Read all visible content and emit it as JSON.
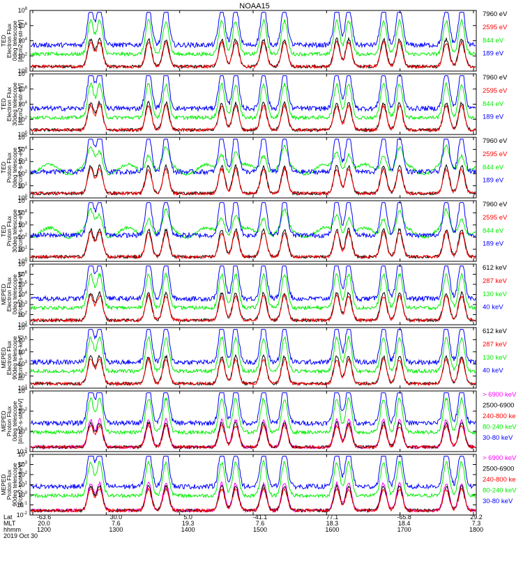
{
  "title": "NOAA15",
  "colors": {
    "black": "#000000",
    "red": "#ff0000",
    "green": "#00ee00",
    "blue": "#0000ff",
    "magenta": "#ff00ff"
  },
  "footer": {
    "row_labels": [
      "Lat",
      "MLT",
      "hhmm"
    ],
    "date": "2019 Oct 30",
    "columns": [
      {
        "lat": "-63.6",
        "mlt": "20.0",
        "hhmm": "1200"
      },
      {
        "lat": "30.0",
        "mlt": "7.6",
        "hhmm": "1300"
      },
      {
        "lat": "5.0",
        "mlt": "19.3",
        "hhmm": "1400"
      },
      {
        "lat": "-41.1",
        "mlt": "7.6",
        "hhmm": "1500"
      },
      {
        "lat": "77.1",
        "mlt": "18.3",
        "hhmm": "1600"
      },
      {
        "lat": "-65.8",
        "mlt": "18.4",
        "hhmm": "1700"
      },
      {
        "lat": "29.2",
        "mlt": "7.3",
        "hhmm": "1800"
      }
    ]
  },
  "chart_data": [
    {
      "type": "line",
      "ylabel": [
        "TED",
        "Electron Flux",
        "0deg telescope",
        "[#/cm2-s-str-eV]"
      ],
      "yticks": [
        "10^0",
        "10^2",
        "10^4",
        "10^6",
        "10^8"
      ],
      "series": [
        {
          "name": "7960 eV",
          "color": "#000000"
        },
        {
          "name": "2595 eV",
          "color": "#ff0000"
        },
        {
          "name": "844 eV",
          "color": "#00ee00"
        },
        {
          "name": "189 eV",
          "color": "#0000ff"
        }
      ]
    },
    {
      "type": "line",
      "ylabel": [
        "TED",
        "Electron Flux",
        "30deg telescope",
        "[#/cm2-s-str-eV]"
      ],
      "yticks": [
        "10^0",
        "10^2",
        "10^4",
        "10^6",
        "10^8"
      ],
      "series": [
        {
          "name": "7960 eV",
          "color": "#000000"
        },
        {
          "name": "2595 eV",
          "color": "#ff0000"
        },
        {
          "name": "844 eV",
          "color": "#00ee00"
        },
        {
          "name": "189 eV",
          "color": "#0000ff"
        }
      ]
    },
    {
      "type": "line",
      "ylabel": [
        "TED",
        "Proton Flux",
        "0deg telescope",
        "[#/cm2-s-str-eV]"
      ],
      "yticks": [
        "10^0",
        "10^1",
        "10^2",
        "10^3",
        "10^4",
        "10^5"
      ],
      "series": [
        {
          "name": "7960 eV",
          "color": "#000000"
        },
        {
          "name": "2595 eV",
          "color": "#ff0000"
        },
        {
          "name": "844 eV",
          "color": "#00ee00"
        },
        {
          "name": "189 eV",
          "color": "#0000ff"
        }
      ]
    },
    {
      "type": "line",
      "ylabel": [
        "TED",
        "Proton Flux",
        "30deg telescope",
        "[#/cm2-s-str-eV]"
      ],
      "yticks": [
        "10^0",
        "10^1",
        "10^2",
        "10^3",
        "10^4",
        "10^5"
      ],
      "series": [
        {
          "name": "7960 eV",
          "color": "#000000"
        },
        {
          "name": "2595 eV",
          "color": "#ff0000"
        },
        {
          "name": "844 eV",
          "color": "#00ee00"
        },
        {
          "name": "189 eV",
          "color": "#0000ff"
        }
      ]
    },
    {
      "type": "line",
      "ylabel": [
        "MEPED",
        "Electron Flux",
        "0deg telescope",
        "[#/cm2-s-str-keV]"
      ],
      "yticks": [
        "10^1",
        "10^2",
        "10^3",
        "10^4",
        "10^5",
        "10^6",
        "10^7"
      ],
      "series": [
        {
          "name": "612 keV",
          "color": "#000000"
        },
        {
          "name": "287 keV",
          "color": "#ff0000"
        },
        {
          "name": "130 keV",
          "color": "#00ee00"
        },
        {
          "name": "40 keV",
          "color": "#0000ff"
        }
      ]
    },
    {
      "type": "line",
      "ylabel": [
        "MEPED",
        "Electron Flux",
        "90deg telescope",
        "[#/cm2-s-str-keV]"
      ],
      "yticks": [
        "10^1",
        "10^2",
        "10^3",
        "10^4",
        "10^5",
        "10^6"
      ],
      "series": [
        {
          "name": "612 keV",
          "color": "#000000"
        },
        {
          "name": "287 keV",
          "color": "#ff0000"
        },
        {
          "name": "130 keV",
          "color": "#00ee00"
        },
        {
          "name": "40 keV",
          "color": "#0000ff"
        }
      ]
    },
    {
      "type": "line",
      "ylabel": [
        "MEPED",
        "Proton Flux",
        "0deg telescope",
        "[#/cm2-s-str-keV]"
      ],
      "yticks": [
        "10^-2",
        "10^0",
        "10^2",
        "10^4"
      ],
      "series": [
        {
          "name": "> 6900 keV",
          "color": "#ff00ff"
        },
        {
          "name": "2500-6900",
          "color": "#000000"
        },
        {
          "name": "240-800 ke",
          "color": "#ff0000"
        },
        {
          "name": "80-240 keV",
          "color": "#00ee00"
        },
        {
          "name": "30-80 keV",
          "color": "#0000ff"
        }
      ]
    },
    {
      "type": "line",
      "ylabel": [
        "MEPED",
        "Proton Flux",
        "90deg telescope",
        "[#/cm2-s-str-keV]"
      ],
      "yticks": [
        "10^-2",
        "10^-1",
        "10^0",
        "10^1",
        "10^2",
        "10^3",
        "10^4"
      ],
      "series": [
        {
          "name": "> 6900 keV",
          "color": "#ff00ff"
        },
        {
          "name": "2500-6900",
          "color": "#000000"
        },
        {
          "name": "240-800 ke",
          "color": "#ff0000"
        },
        {
          "name": "80-240 keV",
          "color": "#00ee00"
        },
        {
          "name": "30-80 keV",
          "color": "#0000ff"
        }
      ]
    }
  ]
}
